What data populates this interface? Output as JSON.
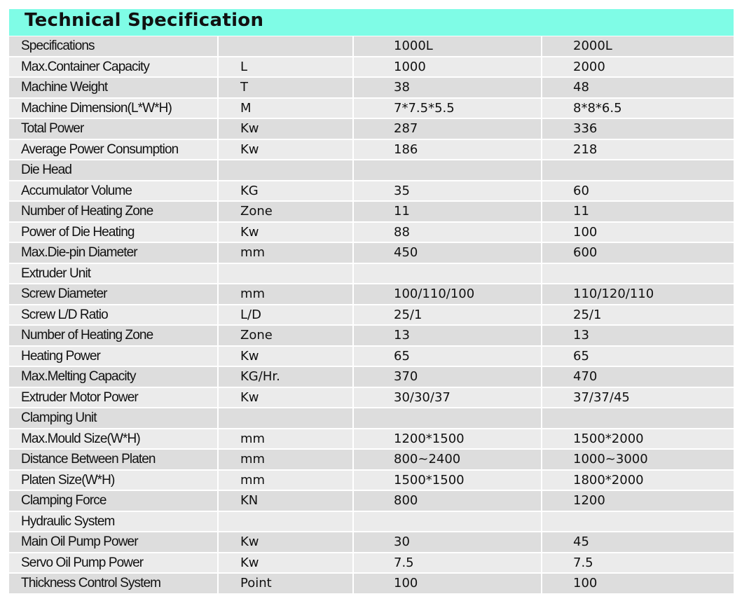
{
  "title": "Technical Specification",
  "colors": {
    "title_band": "#7ffce6",
    "row_dark": "#dddddd",
    "row_light": "#ebebeb"
  },
  "rows": [
    [
      "Specifications",
      "",
      "1000L",
      "2000L"
    ],
    [
      "Max.Container Capacity",
      "L",
      "1000",
      "2000"
    ],
    [
      "Machine Weight",
      "T",
      "38",
      "48"
    ],
    [
      "Machine Dimension(L*W*H)",
      "M",
      "7*7.5*5.5",
      "8*8*6.5"
    ],
    [
      "Total Power",
      "Kw",
      "287",
      "336"
    ],
    [
      "Average Power Consumption",
      "Kw",
      "186",
      "218"
    ],
    [
      "Die Head",
      "",
      "",
      ""
    ],
    [
      "Accumulator Volume",
      "KG",
      "35",
      "60"
    ],
    [
      "Number of Heating Zone",
      "Zone",
      "11",
      "11"
    ],
    [
      "Power of Die Heating",
      "Kw",
      "88",
      "100"
    ],
    [
      "Max.Die-pin Diameter",
      "mm",
      "450",
      "600"
    ],
    [
      "Extruder Unit",
      "",
      "",
      ""
    ],
    [
      "Screw Diameter",
      "mm",
      "100/110/100",
      "110/120/110"
    ],
    [
      "Screw L/D Ratio",
      "L/D",
      "25/1",
      "25/1"
    ],
    [
      "Number of Heating Zone",
      "Zone",
      "13",
      "13"
    ],
    [
      "Heating Power",
      "Kw",
      "65",
      "65"
    ],
    [
      "Max.Melting Capacity",
      "KG/Hr.",
      "370",
      "470"
    ],
    [
      "Extruder Motor Power",
      "Kw",
      "30/30/37",
      "37/37/45"
    ],
    [
      "Clamping Unit",
      "",
      "",
      ""
    ],
    [
      "Max.Mould Size(W*H)",
      "mm",
      "1200*1500",
      "1500*2000"
    ],
    [
      "Distance Between Platen",
      "mm",
      "800~2400",
      "1000~3000"
    ],
    [
      "Platen Size(W*H)",
      "mm",
      "1500*1500",
      "1800*2000"
    ],
    [
      "Clamping Force",
      "KN",
      "800",
      "1200"
    ],
    [
      "Hydraulic System",
      "",
      "",
      ""
    ],
    [
      "Main Oil Pump Power",
      "Kw",
      "30",
      "45"
    ],
    [
      "Servo Oil Pump Power",
      "Kw",
      "7.5",
      "7.5"
    ],
    [
      "Thickness Control System",
      "Point",
      "100",
      "100"
    ]
  ]
}
